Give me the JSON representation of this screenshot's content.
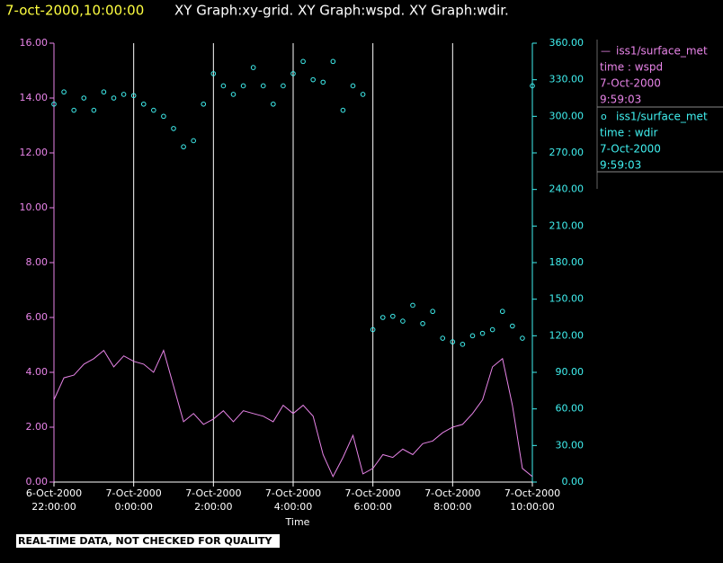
{
  "chart_data": {
    "type": "line-scatter",
    "title_time": "7-oct-2000,10:00:00",
    "title": "XY Graph:xy-grid.  XY Graph:wspd.  XY Graph:wdir.",
    "x_label": "Time",
    "note": "REAL-TIME DATA, NOT CHECKED FOR QUALITY",
    "grid": true,
    "x": [
      "2000-10-06 22:00",
      "2000-10-06 22:15",
      "2000-10-06 22:30",
      "2000-10-06 22:45",
      "2000-10-06 23:00",
      "2000-10-06 23:15",
      "2000-10-06 23:30",
      "2000-10-06 23:45",
      "2000-10-07 00:00",
      "2000-10-07 00:15",
      "2000-10-07 00:30",
      "2000-10-07 00:45",
      "2000-10-07 01:00",
      "2000-10-07 01:15",
      "2000-10-07 01:30",
      "2000-10-07 01:45",
      "2000-10-07 02:00",
      "2000-10-07 02:15",
      "2000-10-07 02:30",
      "2000-10-07 02:45",
      "2000-10-07 03:00",
      "2000-10-07 03:15",
      "2000-10-07 03:30",
      "2000-10-07 03:45",
      "2000-10-07 04:00",
      "2000-10-07 04:15",
      "2000-10-07 04:30",
      "2000-10-07 04:45",
      "2000-10-07 05:00",
      "2000-10-07 05:15",
      "2000-10-07 05:30",
      "2000-10-07 05:45",
      "2000-10-07 06:00",
      "2000-10-07 06:15",
      "2000-10-07 06:30",
      "2000-10-07 06:45",
      "2000-10-07 07:00",
      "2000-10-07 07:15",
      "2000-10-07 07:30",
      "2000-10-07 07:45",
      "2000-10-07 08:00",
      "2000-10-07 08:15",
      "2000-10-07 08:30",
      "2000-10-07 08:45",
      "2000-10-07 09:00",
      "2000-10-07 09:15",
      "2000-10-07 09:30",
      "2000-10-07 09:45",
      "2000-10-07 10:00"
    ],
    "xlim": [
      "2000-10-06 22:00",
      "2000-10-07 10:00"
    ],
    "xticks": [
      {
        "value": "2000-10-06 22:00",
        "label": [
          "6-Oct-2000",
          "22:00:00"
        ]
      },
      {
        "value": "2000-10-07 00:00",
        "label": [
          "7-Oct-2000",
          "0:00:00"
        ]
      },
      {
        "value": "2000-10-07 02:00",
        "label": [
          "7-Oct-2000",
          "2:00:00"
        ]
      },
      {
        "value": "2000-10-07 04:00",
        "label": [
          "7-Oct-2000",
          "4:00:00"
        ]
      },
      {
        "value": "2000-10-07 06:00",
        "label": [
          "7-Oct-2000",
          "6:00:00"
        ]
      },
      {
        "value": "2000-10-07 08:00",
        "label": [
          "7-Oct-2000",
          "8:00:00"
        ]
      },
      {
        "value": "2000-10-07 10:00",
        "label": [
          "7-Oct-2000",
          "10:00:00"
        ]
      }
    ],
    "ylim": [
      0,
      16
    ],
    "yticks": [
      {
        "value": 0,
        "label": "0.00"
      },
      {
        "value": 2,
        "label": "2.00"
      },
      {
        "value": 4,
        "label": "4.00"
      },
      {
        "value": 6,
        "label": "6.00"
      },
      {
        "value": 8,
        "label": "8.00"
      },
      {
        "value": 10,
        "label": "10.00"
      },
      {
        "value": 12,
        "label": "12.00"
      },
      {
        "value": 14,
        "label": "14.00"
      },
      {
        "value": 16,
        "label": "16.00"
      }
    ],
    "y2lim": [
      0,
      360
    ],
    "y2ticks": [
      {
        "value": 0,
        "label": "0.00"
      },
      {
        "value": 30,
        "label": "30.00"
      },
      {
        "value": 60,
        "label": "60.00"
      },
      {
        "value": 90,
        "label": "90.00"
      },
      {
        "value": 120,
        "label": "120.00"
      },
      {
        "value": 150,
        "label": "150.00"
      },
      {
        "value": 180,
        "label": "180.00"
      },
      {
        "value": 210,
        "label": "210.00"
      },
      {
        "value": 240,
        "label": "240.00"
      },
      {
        "value": 270,
        "label": "270.00"
      },
      {
        "value": 300,
        "label": "300.00"
      },
      {
        "value": 330,
        "label": "330.00"
      },
      {
        "value": 360,
        "label": "360.00"
      }
    ],
    "series": [
      {
        "name": "iss1/surface_met",
        "marker": "—",
        "label_lines": [
          "time : wspd",
          "7-Oct-2000",
          "9:59:03"
        ],
        "color": "#e884e8",
        "mark": "line",
        "values": [
          3.0,
          3.8,
          3.9,
          4.3,
          4.5,
          4.8,
          4.2,
          4.6,
          4.4,
          4.3,
          4.0,
          4.8,
          3.5,
          2.2,
          2.5,
          2.1,
          2.3,
          2.6,
          2.2,
          2.6,
          2.5,
          2.4,
          2.2,
          2.8,
          2.5,
          2.8,
          2.4,
          1.0,
          0.2,
          0.9,
          1.7,
          0.3,
          0.5,
          1.0,
          0.9,
          1.2,
          1.0,
          1.4,
          1.5,
          1.8,
          2.0,
          2.1,
          2.5,
          3.0,
          4.2,
          4.5,
          2.8,
          0.5,
          0.2
        ]
      },
      {
        "name": "iss1/surface_met",
        "marker": "o",
        "label_lines": [
          "time : wdir",
          "7-Oct-2000",
          "9:59:03"
        ],
        "color": "#40f0f0",
        "mark": "scatter",
        "axis": "y2",
        "values": [
          310,
          320,
          305,
          315,
          305,
          320,
          315,
          318,
          317,
          310,
          305,
          300,
          290,
          275,
          280,
          310,
          335,
          325,
          318,
          325,
          340,
          325,
          310,
          325,
          335,
          345,
          330,
          328,
          345,
          305,
          325,
          318,
          125,
          135,
          136,
          132,
          145,
          130,
          140,
          118,
          115,
          113,
          120,
          122,
          125,
          140,
          128,
          118,
          325
        ]
      }
    ]
  }
}
